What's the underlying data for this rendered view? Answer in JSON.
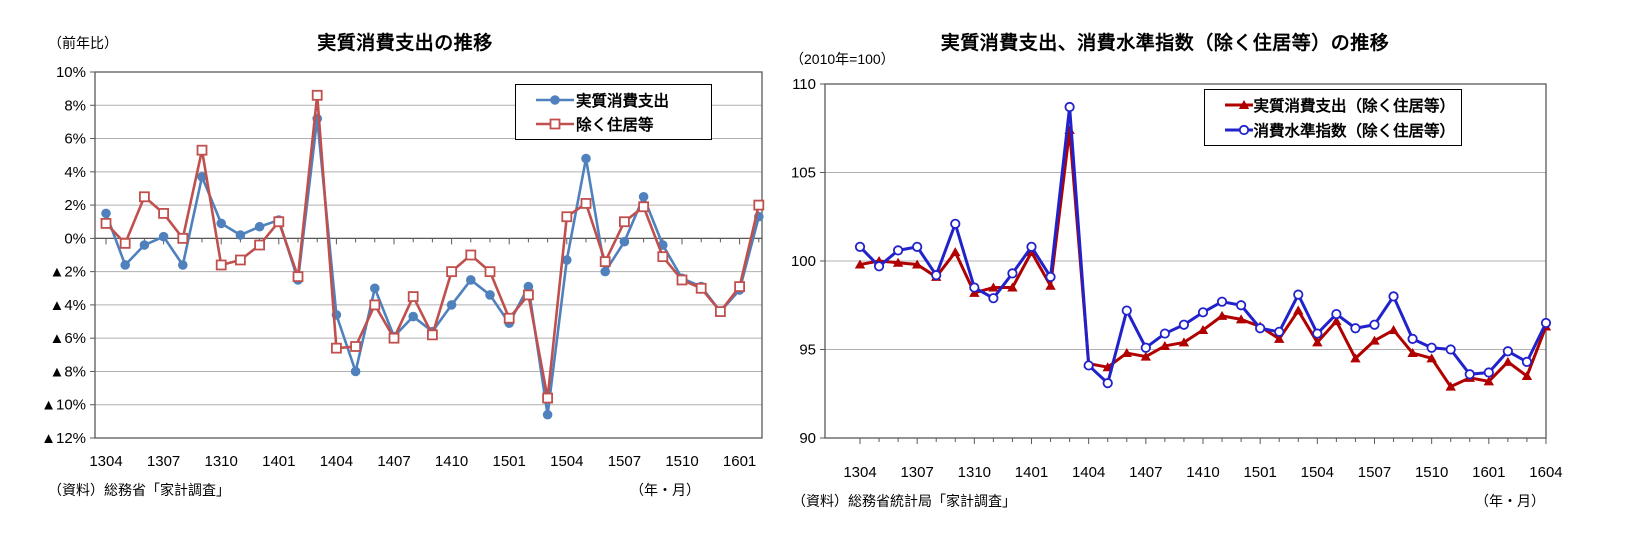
{
  "left_chart": {
    "unit_label": "（前年比）",
    "title": "実質消費支出の推移",
    "source": "（資料）総務省「家計調査」",
    "axis_note": "（年・月）"
  },
  "right_chart": {
    "unit_label": "（2010年=100）",
    "title": "実質消費支出、消費水準指数（除く住居等）の推移",
    "source": "（資料）総務省統計局「家計調査」",
    "axis_note": "（年・月）"
  },
  "chart_data": [
    {
      "type": "line",
      "title": "実質消費支出の推移",
      "ylabel": "（前年比）",
      "xlabel": "（年・月）",
      "ylim": [
        -12,
        10
      ],
      "ytick_step": 2,
      "grid": true,
      "legend_position": "top-right",
      "ytick_labels_top_to_bottom": [
        "10%",
        "8%",
        "6%",
        "4%",
        "2%",
        "0%",
        "▲2%",
        "▲4%",
        "▲6%",
        "▲8%",
        "▲10%",
        "▲12%"
      ],
      "xtick_every": 3,
      "categories": [
        "1304",
        "1305",
        "1306",
        "1307",
        "1308",
        "1309",
        "1310",
        "1311",
        "1312",
        "1401",
        "1402",
        "1403",
        "1404",
        "1405",
        "1406",
        "1407",
        "1408",
        "1409",
        "1410",
        "1411",
        "1412",
        "1501",
        "1502",
        "1503",
        "1504",
        "1505",
        "1506",
        "1507",
        "1508",
        "1509",
        "1510",
        "1511",
        "1512",
        "1601",
        "1602"
      ],
      "series": [
        {
          "name": "実質消費支出",
          "color": "#4f81bd",
          "marker": "filled-circle",
          "width": 2.6,
          "values": [
            1.5,
            -1.6,
            -0.4,
            0.1,
            -1.6,
            3.7,
            0.9,
            0.2,
            0.7,
            1.1,
            -2.5,
            7.2,
            -4.6,
            -8.0,
            -3.0,
            -5.9,
            -4.7,
            -5.6,
            -4.0,
            -2.5,
            -3.4,
            -5.1,
            -2.9,
            -10.6,
            -1.3,
            4.8,
            -2.0,
            -0.2,
            2.5,
            -0.4,
            -2.4,
            -2.9,
            -4.4,
            -3.1,
            1.3
          ]
        },
        {
          "name": "除く住居等",
          "color": "#c0504d",
          "marker": "open-square",
          "width": 2.6,
          "values": [
            0.9,
            -0.3,
            2.5,
            1.5,
            0.0,
            5.3,
            -1.6,
            -1.3,
            -0.4,
            1.0,
            -2.3,
            8.6,
            -6.6,
            -6.5,
            -4.0,
            -6.0,
            -3.5,
            -5.8,
            -2.0,
            -1.0,
            -2.0,
            -4.8,
            -3.4,
            -9.6,
            1.3,
            2.1,
            -1.4,
            1.0,
            1.9,
            -1.1,
            -2.5,
            -3.0,
            -4.4,
            -2.9,
            2.0
          ]
        }
      ]
    },
    {
      "type": "line",
      "title": "実質消費支出、消費水準指数（除く住居等）の推移",
      "ylabel": "（2010年=100）",
      "xlabel": "（年・月）",
      "ylim": [
        90,
        110
      ],
      "ytick_step": 5,
      "grid": true,
      "legend_position": "top-right",
      "ytick_labels_top_to_bottom": [
        "110",
        "105",
        "100",
        "95",
        "90"
      ],
      "xtick_every": 3,
      "categories": [
        "1304",
        "1305",
        "1306",
        "1307",
        "1308",
        "1309",
        "1310",
        "1311",
        "1312",
        "1401",
        "1402",
        "1403",
        "1404",
        "1405",
        "1406",
        "1407",
        "1408",
        "1409",
        "1410",
        "1411",
        "1412",
        "1501",
        "1502",
        "1503",
        "1504",
        "1505",
        "1506",
        "1507",
        "1508",
        "1509",
        "1510",
        "1511",
        "1512",
        "1601",
        "1602",
        "1603",
        "1604"
      ],
      "series": [
        {
          "name": "実質消費支出（除く住居等）",
          "color": "#b00000",
          "marker": "filled-triangle",
          "width": 3,
          "values": [
            99.8,
            100.0,
            99.9,
            99.8,
            99.1,
            100.5,
            98.2,
            98.5,
            98.5,
            100.5,
            98.6,
            107.4,
            94.2,
            94.0,
            94.8,
            94.6,
            95.2,
            95.4,
            96.1,
            96.9,
            96.7,
            96.3,
            95.6,
            97.2,
            95.4,
            96.6,
            94.5,
            95.5,
            96.1,
            94.8,
            94.5,
            92.9,
            93.4,
            93.2,
            94.3,
            93.5,
            96.3
          ]
        },
        {
          "name": "消費水準指数（除く住居等）",
          "color": "#2222cc",
          "marker": "open-circle",
          "width": 3,
          "values": [
            100.8,
            99.7,
            100.6,
            100.8,
            99.2,
            102.1,
            98.5,
            97.9,
            99.3,
            100.8,
            99.1,
            108.7,
            94.1,
            93.1,
            97.2,
            95.1,
            95.9,
            96.4,
            97.1,
            97.7,
            97.5,
            96.2,
            96.0,
            98.1,
            95.9,
            97.0,
            96.2,
            96.4,
            98.0,
            95.6,
            95.1,
            95.0,
            93.6,
            93.7,
            94.9,
            94.3,
            96.5
          ]
        }
      ]
    }
  ]
}
